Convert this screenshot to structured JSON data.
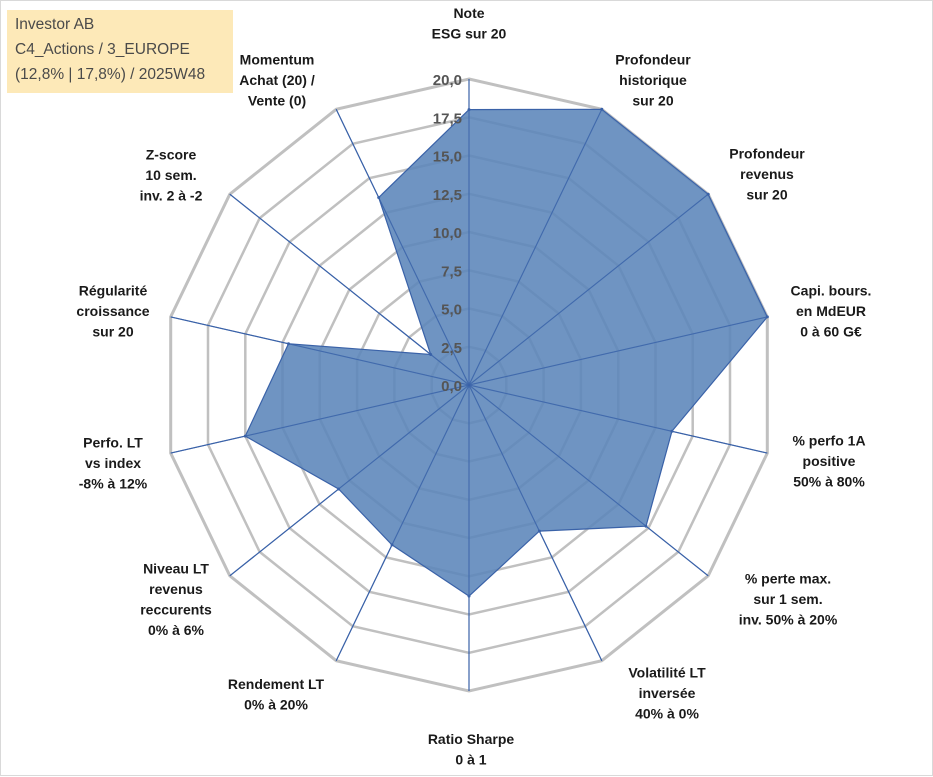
{
  "info_box": {
    "line1": "Investor AB",
    "line2": "C4_Actions / 3_EUROPE",
    "line3": "(12,8% | 17,8%) / 2025W48"
  },
  "colors": {
    "fill": "#5b85ba",
    "stroke": "#3a62a8",
    "grid": "#c0c0c0",
    "spoke": "#3a62a8",
    "box": "#fde9b8"
  },
  "chart_data": {
    "type": "radar",
    "title": "",
    "rmin": 0,
    "rmax": 20,
    "ticks": [
      {
        "value": 0,
        "label": "0,0"
      },
      {
        "value": 2.5,
        "label": "2,5"
      },
      {
        "value": 5,
        "label": "5,0"
      },
      {
        "value": 7.5,
        "label": "7,5"
      },
      {
        "value": 10,
        "label": "10,0"
      },
      {
        "value": 12.5,
        "label": "12,5"
      },
      {
        "value": 15,
        "label": "15,0"
      },
      {
        "value": 17.5,
        "label": "17,5"
      },
      {
        "value": 20,
        "label": "20,0"
      }
    ],
    "axes": [
      {
        "lines": [
          "Note",
          "ESG sur 20"
        ],
        "value": 18
      },
      {
        "lines": [
          "Profondeur",
          "historique",
          "sur 20"
        ],
        "value": 20
      },
      {
        "lines": [
          "Profondeur",
          "revenus",
          "sur 20"
        ],
        "value": 20
      },
      {
        "lines": [
          "Capi. bours.",
          "en MdEUR",
          "0 à 60 G€"
        ],
        "value": 20
      },
      {
        "lines": [
          "% perfo 1A",
          "positive",
          "50% à 80%"
        ],
        "value": 13.6
      },
      {
        "lines": [
          "% perte max.",
          "sur 1 sem.",
          "inv. 50% à 20%"
        ],
        "value": 14.8
      },
      {
        "lines": [
          "Volatilité LT",
          "inversée",
          "40% à 0%"
        ],
        "value": 10.6
      },
      {
        "lines": [
          "Ratio Sharpe",
          "0 à 1"
        ],
        "value": 13.8
      },
      {
        "lines": [
          "Rendement LT",
          "0% à 20%"
        ],
        "value": 11.6
      },
      {
        "lines": [
          "Niveau LT",
          "revenus",
          "reccurents",
          "0% à 6%"
        ],
        "value": 10.9
      },
      {
        "lines": [
          "Perfo. LT",
          "vs index",
          "-8% à 12%"
        ],
        "value": 15
      },
      {
        "lines": [
          "Régularité",
          "croissance",
          "sur 20"
        ],
        "value": 12.1
      },
      {
        "lines": [
          "Z-score",
          "10 sem.",
          "inv. 2 à -2"
        ],
        "value": 3.2
      },
      {
        "lines": [
          "Momentum",
          "Achat (20) /",
          "Vente (0)"
        ],
        "value": 13.6
      }
    ]
  }
}
